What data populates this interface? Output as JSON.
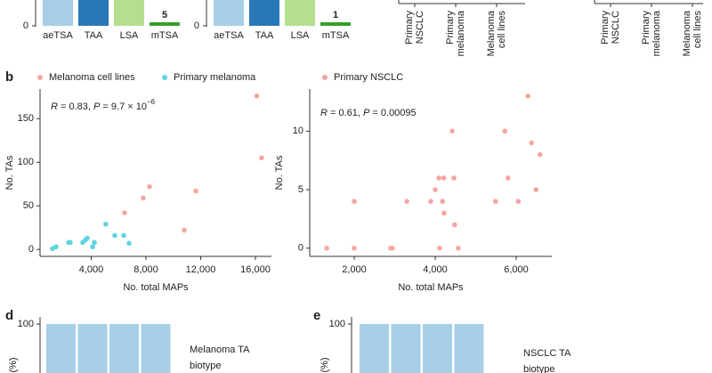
{
  "top_panels": [
    {
      "categories": [
        "aeTSA",
        "TAA",
        "LSA",
        "mTSA"
      ],
      "colors": [
        "#a6cfe6",
        "#2878b8",
        "#b4df8e",
        "#33a02c"
      ],
      "ytick": 0,
      "last_label": 5
    },
    {
      "categories": [
        "aeTSA",
        "TAA",
        "LSA",
        "mTSA"
      ],
      "colors": [
        "#a6cfe6",
        "#2878b8",
        "#b4df8e",
        "#33a02c"
      ],
      "ytick": 0,
      "last_label": 1
    }
  ],
  "top_right_panels": [
    {
      "labels": [
        [
          "Primary",
          "NSCLC"
        ],
        [
          "Primary",
          "melanoma"
        ],
        [
          "Melanoma",
          "cell lines"
        ]
      ]
    },
    {
      "labels": [
        [
          "Primary",
          "NSCLC"
        ],
        [
          "Primary",
          "melanoma"
        ],
        [
          "Melanoma",
          "cell lines"
        ]
      ]
    }
  ],
  "panel_b": {
    "label": "b",
    "charts": [
      {
        "type": "scatter",
        "xlabel": "No. total MAPs",
        "ylabel": "No. TAs",
        "annotation": {
          "r": "R",
          "r_text": " = 0.83, ",
          "p": "P",
          "p_text": " = 9.7 × 10",
          "sup": "−6"
        },
        "xlim": [
          260,
          17170
        ],
        "ylim": [
          -8,
          184
        ],
        "xticks": [
          {
            "value": 4000,
            "label": "4,000"
          },
          {
            "value": 8000,
            "label": "8,000"
          },
          {
            "value": 12000,
            "label": "12,000"
          },
          {
            "value": 16000,
            "label": "16,000"
          }
        ],
        "yticks": [
          0,
          50,
          100,
          150
        ],
        "series": [
          {
            "name": "Melanoma cell lines",
            "color": "#f4a6a0",
            "x": [
              16100,
              16450,
              11640,
              10800,
              8260,
              7800,
              6440
            ],
            "y": [
              176,
              105,
              67,
              22,
              72,
              59,
              42
            ]
          },
          {
            "name": "Primary melanoma",
            "color": "#5fd3e0",
            "x": [
              5070,
              5720,
              6370,
              6760,
              3710,
              3580,
              3380,
              4230,
              2470,
              2350,
              1430,
              1170,
              4100
            ],
            "y": [
              29,
              16,
              16,
              7,
              13,
              11,
              8,
              8,
              8,
              8,
              3,
              1,
              3
            ]
          }
        ]
      },
      {
        "type": "scatter",
        "xlabel": "No. total MAPs",
        "ylabel": "No. TAs",
        "annotation": {
          "r": "R",
          "r_text": " = 0.61, ",
          "p": "P",
          "p_text": " = 0.00095"
        },
        "xlim": [
          900,
          6880
        ],
        "ylim": [
          -0.7,
          13.6
        ],
        "xticks": [
          {
            "value": 2000,
            "label": "2,000"
          },
          {
            "value": 4000,
            "label": "4,000"
          },
          {
            "value": 6000,
            "label": "6,000"
          }
        ],
        "yticks": [
          0,
          5,
          10
        ],
        "series": [
          {
            "name": "Primary NSCLC",
            "color": "#f4a6a0",
            "x": [
              6290,
              6380,
              6590,
              5720,
              4420,
              5800,
              6490,
              6050,
              5490,
              4460,
              4000,
              4090,
              4210,
              4180,
              3890,
              3300,
              2000,
              4220,
              4480,
              4570,
              4110,
              2940,
              2900,
              2000,
              1320
            ],
            "y": [
              13,
              9,
              8,
              10,
              10,
              6,
              5,
              4,
              4,
              6,
              5,
              6,
              6,
              4,
              4,
              4,
              4,
              3,
              2,
              0,
              0,
              0,
              0,
              0,
              0
            ]
          }
        ]
      }
    ]
  },
  "panel_d": {
    "label": "d",
    "ytick": 100,
    "ylabel": "(%)",
    "legend_title": [
      "Melanoma TA",
      "biotype"
    ]
  },
  "panel_e": {
    "label": "e",
    "ytick": 100,
    "ylabel": "(%)",
    "legend_title": [
      "NSCLC TA",
      "biotype"
    ]
  }
}
